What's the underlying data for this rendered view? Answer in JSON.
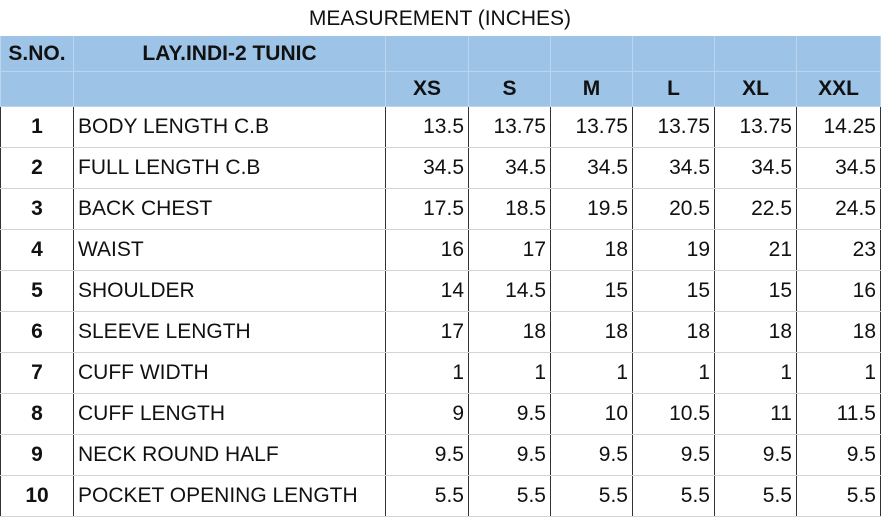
{
  "title": "MEASUREMENT (INCHES)",
  "table": {
    "header": [
      "S.NO.",
      "LAY.INDI-2 TUNIC"
    ],
    "sizes": [
      "XS",
      "S",
      "M",
      "L",
      "XL",
      "XXL"
    ],
    "rows": [
      [
        1,
        "BODY LENGTH C.B",
        13.5,
        13.75,
        13.75,
        13.75,
        13.75,
        14.25
      ],
      [
        2,
        "FULL LENGTH C.B",
        34.5,
        34.5,
        34.5,
        34.5,
        34.5,
        34.5
      ],
      [
        3,
        "BACK CHEST",
        17.5,
        18.5,
        19.5,
        20.5,
        22.5,
        24.5
      ],
      [
        4,
        "WAIST",
        16,
        17,
        18,
        19,
        21,
        23
      ],
      [
        5,
        "SHOULDER",
        14,
        14.5,
        15,
        15,
        15,
        16
      ],
      [
        6,
        "SLEEVE LENGTH",
        17,
        18,
        18,
        18,
        18,
        18
      ],
      [
        7,
        "CUFF WIDTH",
        1,
        1,
        1,
        1,
        1,
        1
      ],
      [
        8,
        "CUFF LENGTH",
        9,
        9.5,
        10,
        10.5,
        11,
        11.5
      ],
      [
        9,
        "NECK ROUND HALF",
        9.5,
        9.5,
        9.5,
        9.5,
        9.5,
        9.5
      ],
      [
        10,
        "POCKET OPENING LENGTH",
        5.5,
        5.5,
        5.5,
        5.5,
        5.5,
        5.5
      ]
    ]
  }
}
